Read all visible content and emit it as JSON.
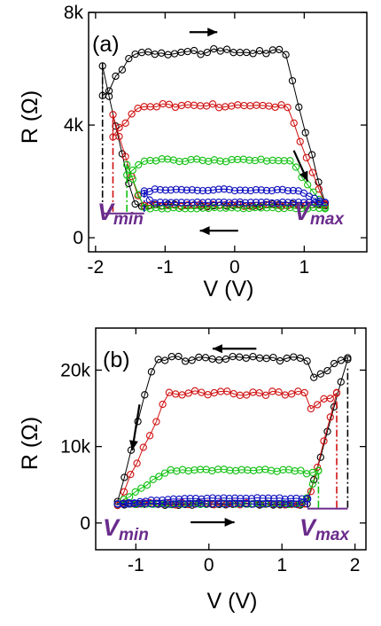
{
  "chart_data": [
    {
      "panel": "(a)",
      "type": "scatter",
      "xlabel": "V (V)",
      "ylabel": "R (Ω)",
      "xlim": [
        -2.1,
        1.9
      ],
      "ylim": [
        -500,
        8000
      ],
      "xticks": [
        "-2",
        "-1",
        "0",
        "1"
      ],
      "yticks": [
        "0",
        "4k",
        "8k"
      ],
      "xtick_values": [
        -2,
        -1,
        0,
        1
      ],
      "ytick_values": [
        0,
        4000,
        8000
      ],
      "annotations": {
        "vmin_main": "V",
        "vmin_sub": "min",
        "vmax_main": "V",
        "vmax_sub": "max"
      },
      "series": [
        {
          "color": "#000000",
          "vmin": -1.9,
          "vmax": 1.3,
          "high": 6600,
          "low": 1150,
          "switch_up": -1.45,
          "switch_down": 0.72
        },
        {
          "color": "#d01010",
          "vmin": -1.75,
          "vmax": 1.3,
          "high": 4700,
          "low": 1150,
          "switch_up": -1.35,
          "switch_down": 0.75
        },
        {
          "color": "#10c010",
          "vmin": -1.55,
          "vmax": 1.3,
          "high": 2750,
          "low": 1050,
          "switch_up": -1.3,
          "switch_down": 0.8
        },
        {
          "color": "#1010c0",
          "vmin": -1.3,
          "vmax": 1.3,
          "high": 1700,
          "low": 1250,
          "switch_up": -1.2,
          "switch_down": 0.85
        }
      ]
    },
    {
      "panel": "(b)",
      "type": "scatter",
      "xlabel": "V (V)",
      "ylabel": "R (Ω)",
      "xlim": [
        -1.55,
        2.15
      ],
      "ylim": [
        -3500,
        25500
      ],
      "xticks": [
        "-1",
        "0",
        "1",
        "2"
      ],
      "yticks": [
        "0",
        "10k",
        "20k"
      ],
      "xtick_values": [
        -1,
        0,
        1,
        2
      ],
      "ytick_values": [
        0,
        10000,
        20000
      ],
      "annotations": {
        "vmin_main": "V",
        "vmin_sub": "min",
        "vmax_main": "V",
        "vmax_sub": "max"
      },
      "series": [
        {
          "color": "#000000",
          "vmin": -1.25,
          "vmax": 1.9,
          "high": 21500,
          "low": 2500,
          "switch_up": 1.35,
          "switch_down": -0.75
        },
        {
          "color": "#d01010",
          "vmin": -1.25,
          "vmax": 1.75,
          "high": 17000,
          "low": 2500,
          "switch_up": 1.35,
          "switch_down": -0.55
        },
        {
          "color": "#10c010",
          "vmin": -1.25,
          "vmax": 1.5,
          "high": 6900,
          "low": 2500,
          "switch_up": 1.3,
          "switch_down": -0.55
        },
        {
          "color": "#1010c0",
          "vmin": -1.25,
          "vmax": 1.35,
          "high": 3200,
          "low": 2500,
          "switch_up": 1.25,
          "switch_down": -0.5
        }
      ]
    }
  ]
}
